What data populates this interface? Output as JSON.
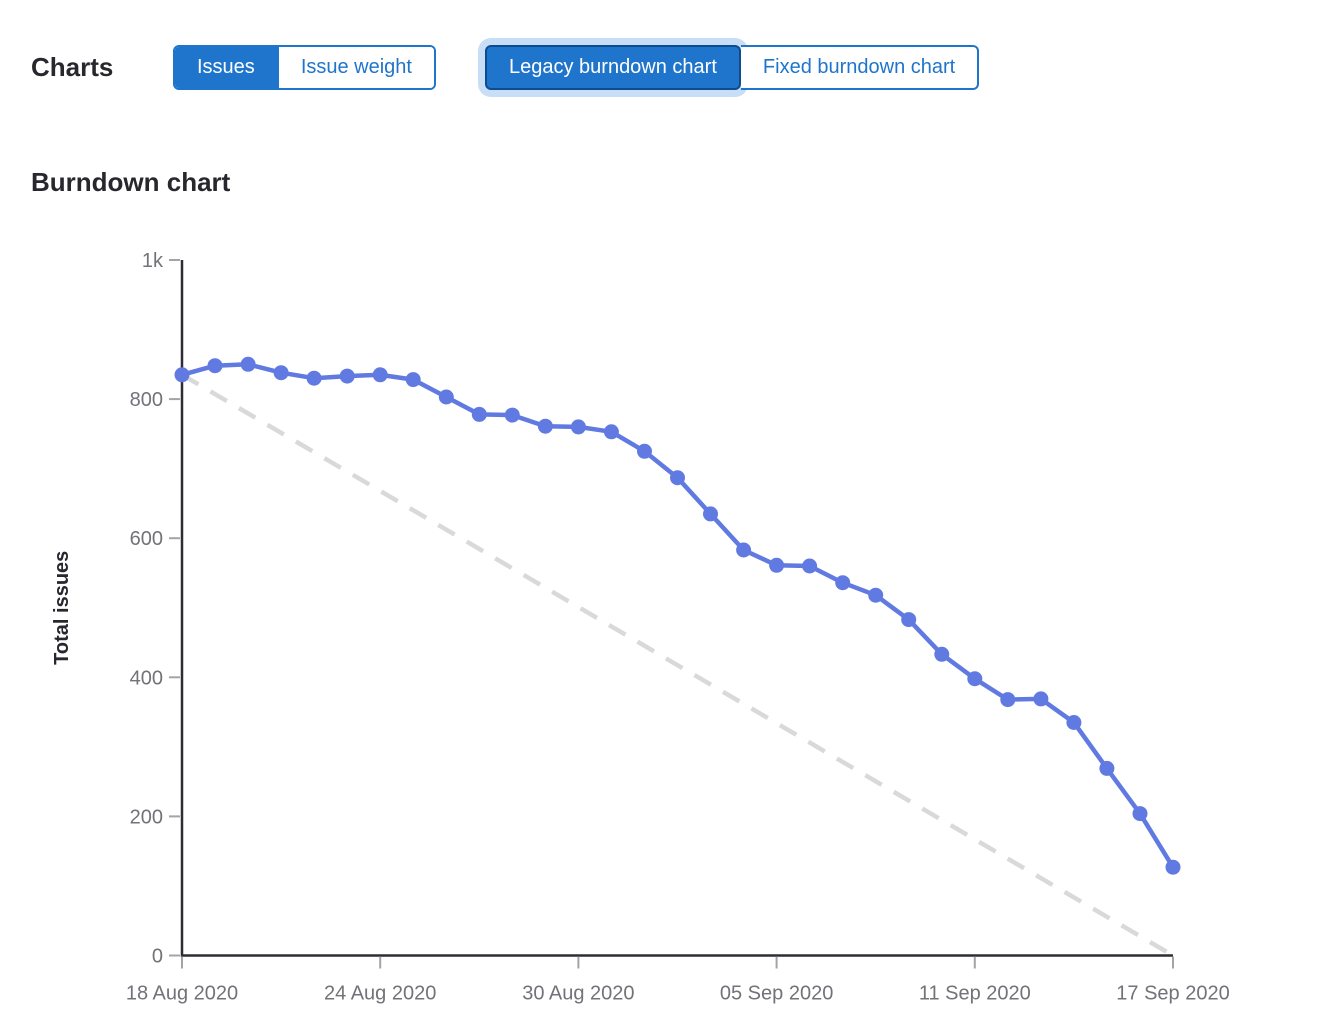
{
  "header": {
    "charts_label": "Charts",
    "metric_toggle": {
      "options": [
        {
          "label": "Issues",
          "selected": true
        },
        {
          "label": "Issue weight",
          "selected": false
        }
      ]
    },
    "chart_type_toggle": {
      "options": [
        {
          "label": "Legacy burndown chart",
          "selected": true,
          "focused": true
        },
        {
          "label": "Fixed burndown chart",
          "selected": false
        }
      ]
    }
  },
  "chart_section": {
    "title": "Burndown chart"
  },
  "chart_data": {
    "type": "line",
    "title": "Burndown chart",
    "xlabel": "",
    "ylabel": "Total issues",
    "ylim": [
      0,
      1000
    ],
    "grid": false,
    "legend_position": "none",
    "y_ticks": {
      "values": [
        0,
        200,
        400,
        600,
        800,
        1000
      ],
      "labels": [
        "0",
        "200",
        "400",
        "600",
        "800",
        "1k"
      ]
    },
    "x": [
      "18 Aug 2020",
      "19 Aug 2020",
      "20 Aug 2020",
      "21 Aug 2020",
      "22 Aug 2020",
      "23 Aug 2020",
      "24 Aug 2020",
      "25 Aug 2020",
      "26 Aug 2020",
      "27 Aug 2020",
      "28 Aug 2020",
      "29 Aug 2020",
      "30 Aug 2020",
      "31 Aug 2020",
      "01 Sep 2020",
      "02 Sep 2020",
      "03 Sep 2020",
      "04 Sep 2020",
      "05 Sep 2020",
      "06 Sep 2020",
      "07 Sep 2020",
      "08 Sep 2020",
      "09 Sep 2020",
      "10 Sep 2020",
      "11 Sep 2020",
      "12 Sep 2020",
      "13 Sep 2020",
      "14 Sep 2020",
      "15 Sep 2020",
      "16 Sep 2020",
      "17 Sep 2020"
    ],
    "x_tick_indices": [
      0,
      6,
      12,
      18,
      24,
      30
    ],
    "x_tick_labels": [
      "18 Aug 2020",
      "24 Aug 2020",
      "30 Aug 2020",
      "05 Sep 2020",
      "11 Sep 2020",
      "17 Sep 2020"
    ],
    "series": [
      {
        "name": "Total issues remaining",
        "style": "solid-with-points",
        "color": "#617ae2",
        "values": [
          835,
          848,
          850,
          838,
          830,
          833,
          835,
          828,
          803,
          778,
          777,
          761,
          760,
          753,
          725,
          687,
          635,
          583,
          561,
          560,
          536,
          518,
          483,
          433,
          398,
          368,
          369,
          335,
          269,
          204,
          127
        ]
      },
      {
        "name": "Guideline",
        "style": "dashed",
        "color": "#d9d9d9",
        "from": {
          "x_index": 0,
          "value": 835
        },
        "to": {
          "x_index": 30,
          "value": 0
        }
      }
    ],
    "axis_color": "#2e2d33",
    "tick_mark_color": "#a4a3a8",
    "tick_label_color": "#737278"
  },
  "colors": {
    "accent_blue": "#1f75cb",
    "selected_border_dark": "#0d4d8f",
    "focus_halo": "#c8def6",
    "heading_text": "#28272d",
    "series_line": "#617ae2",
    "guideline": "#d9d9d9"
  }
}
